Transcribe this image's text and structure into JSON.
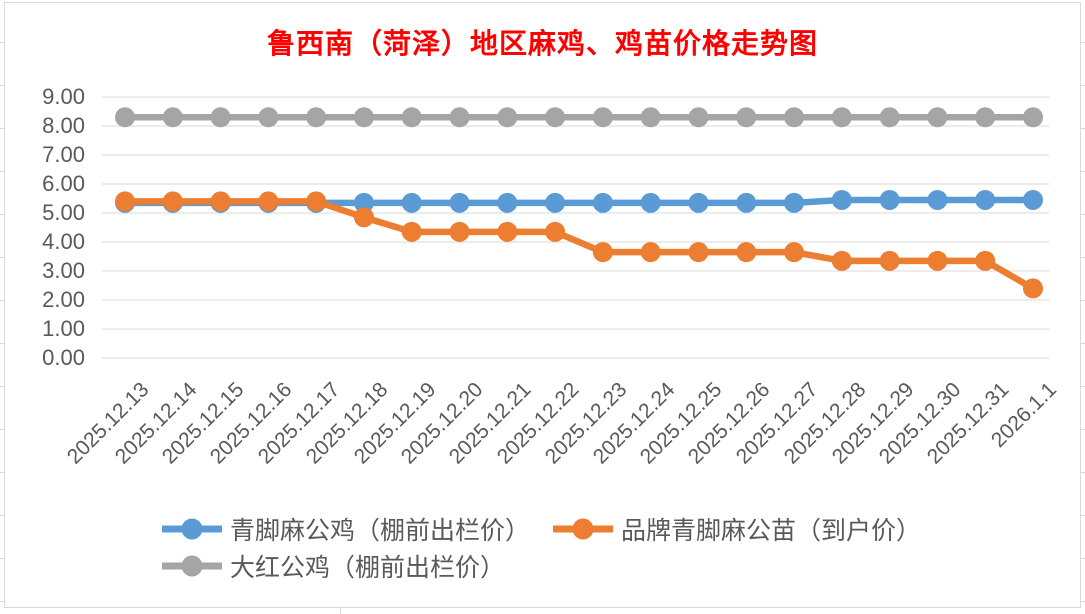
{
  "frame": {
    "background": "#FFFFFF",
    "border_color": "#D9D9D9"
  },
  "chart_data": {
    "type": "line",
    "title": "鲁西南（菏泽）地区麻鸡、鸡苗价格走势图",
    "title_color": "#FF0000",
    "categories": [
      "2025.12.13",
      "2025.12.14",
      "2025.12.15",
      "2025.12.16",
      "2025.12.17",
      "2025.12.18",
      "2025.12.19",
      "2025.12.20",
      "2025.12.21",
      "2025.12.22",
      "2025.12.23",
      "2025.12.24",
      "2025.12.25",
      "2025.12.26",
      "2025.12.27",
      "2025.12.28",
      "2025.12.29",
      "2025.12.30",
      "2025.12.31",
      "2026.1.1"
    ],
    "series": [
      {
        "name": "青脚麻公鸡（棚前出栏价）",
        "color": "#5B9BD5",
        "marker": "circle",
        "values": [
          5.35,
          5.35,
          5.35,
          5.35,
          5.35,
          5.35,
          5.35,
          5.35,
          5.35,
          5.35,
          5.35,
          5.35,
          5.35,
          5.35,
          5.35,
          5.45,
          5.45,
          5.45,
          5.45,
          5.45
        ]
      },
      {
        "name": "品牌青脚麻公苗（到户价）",
        "color": "#ED7D31",
        "marker": "circle",
        "values": [
          5.4,
          5.4,
          5.4,
          5.4,
          5.4,
          4.85,
          4.35,
          4.35,
          4.35,
          4.35,
          3.65,
          3.65,
          3.65,
          3.65,
          3.65,
          3.35,
          3.35,
          3.35,
          3.35,
          2.4
        ]
      },
      {
        "name": "大红公鸡（棚前出栏价）",
        "color": "#A5A5A5",
        "marker": "circle",
        "values": [
          8.3,
          8.3,
          8.3,
          8.3,
          8.3,
          8.3,
          8.3,
          8.3,
          8.3,
          8.3,
          8.3,
          8.3,
          8.3,
          8.3,
          8.3,
          8.3,
          8.3,
          8.3,
          8.3,
          8.3
        ]
      }
    ],
    "ylim": [
      0,
      9
    ],
    "ytick_step": 1.0,
    "ytick_labels": [
      "0.00",
      "1.00",
      "2.00",
      "3.00",
      "4.00",
      "5.00",
      "6.00",
      "7.00",
      "8.00",
      "9.00"
    ],
    "grid": true,
    "gridline_color": "#D9D9D9",
    "axis_text_color": "#595959",
    "legend_position": "bottom"
  }
}
